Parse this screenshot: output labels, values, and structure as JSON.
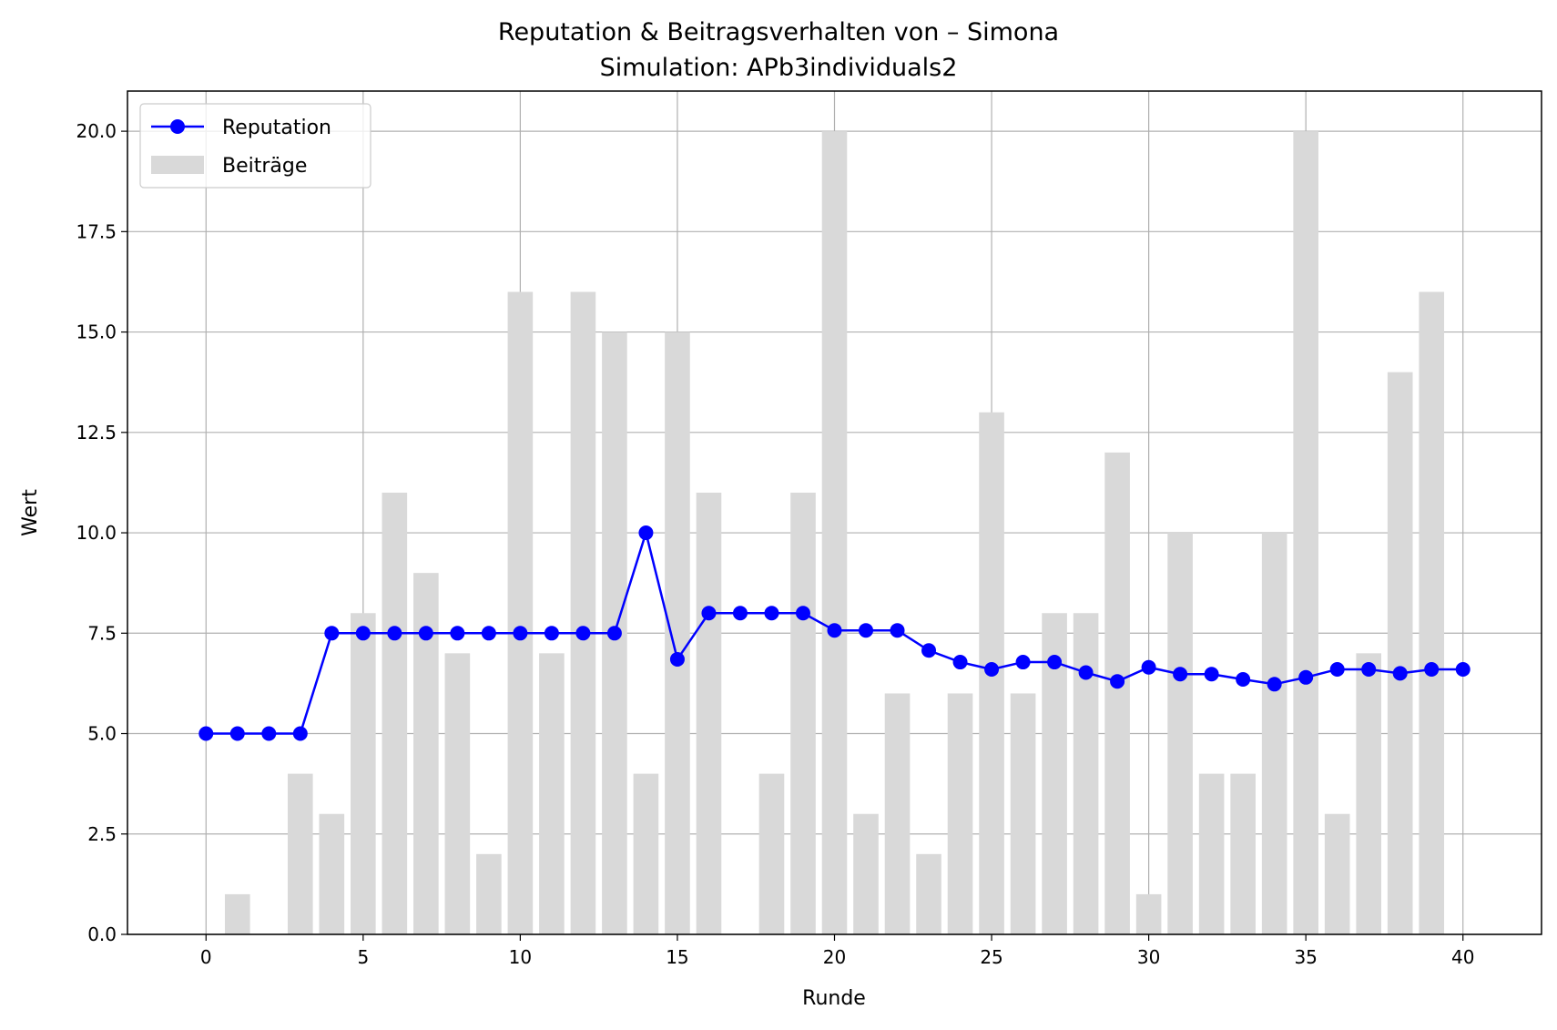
{
  "chart_data": {
    "type": "bar",
    "title": "Reputation & Beitragsverhalten von – Simona",
    "subtitle": "Simulation: APb3individuals2",
    "xlabel": "Runde",
    "ylabel": "Wert",
    "xlim": [
      -2.5,
      42.5
    ],
    "ylim": [
      0,
      21
    ],
    "xticks": [
      0,
      5,
      10,
      15,
      20,
      25,
      30,
      35,
      40
    ],
    "yticks": [
      0.0,
      2.5,
      5.0,
      7.5,
      10.0,
      12.5,
      15.0,
      17.5,
      20.0
    ],
    "xtick_labels": [
      "0",
      "5",
      "10",
      "15",
      "20",
      "25",
      "30",
      "35",
      "40"
    ],
    "ytick_labels": [
      "0.0",
      "2.5",
      "5.0",
      "7.5",
      "10.0",
      "12.5",
      "15.0",
      "17.5",
      "20.0"
    ],
    "grid": true,
    "legend_position": "top-left",
    "series": [
      {
        "name": "Reputation",
        "kind": "line",
        "color": "#0000ff",
        "marker": "circle",
        "x": [
          0,
          1,
          2,
          3,
          4,
          5,
          6,
          7,
          8,
          9,
          10,
          11,
          12,
          13,
          14,
          15,
          16,
          17,
          18,
          19,
          20,
          21,
          22,
          23,
          24,
          25,
          26,
          27,
          28,
          29,
          30,
          31,
          32,
          33,
          34,
          35,
          36,
          37,
          38,
          39,
          40
        ],
        "values": [
          5.0,
          5.0,
          5.0,
          5.0,
          7.5,
          7.5,
          7.5,
          7.5,
          7.5,
          7.5,
          7.5,
          7.5,
          7.5,
          7.5,
          10.0,
          6.85,
          8.0,
          8.0,
          8.0,
          8.0,
          7.57,
          7.57,
          7.57,
          7.07,
          6.78,
          6.6,
          6.78,
          6.78,
          6.52,
          6.3,
          6.65,
          6.48,
          6.48,
          6.35,
          6.23,
          6.4,
          6.6,
          6.6,
          6.5,
          6.6,
          6.6
        ]
      },
      {
        "name": "Beiträge",
        "kind": "bar",
        "color": "#d9d9d9",
        "x": [
          1,
          2,
          3,
          4,
          5,
          6,
          7,
          8,
          9,
          10,
          11,
          12,
          13,
          14,
          15,
          16,
          17,
          18,
          19,
          20,
          21,
          22,
          23,
          24,
          25,
          26,
          27,
          28,
          29,
          30,
          31,
          32,
          33,
          34,
          35,
          36,
          37,
          38,
          39
        ],
        "values": [
          1,
          0,
          4,
          3,
          8,
          11,
          9,
          7,
          2,
          16,
          7,
          16,
          15,
          4,
          15,
          11,
          0,
          4,
          11,
          20,
          3,
          6,
          2,
          6,
          13,
          6,
          8,
          8,
          12,
          1,
          10,
          4,
          4,
          10,
          20,
          3,
          7,
          14,
          16
        ]
      }
    ]
  }
}
